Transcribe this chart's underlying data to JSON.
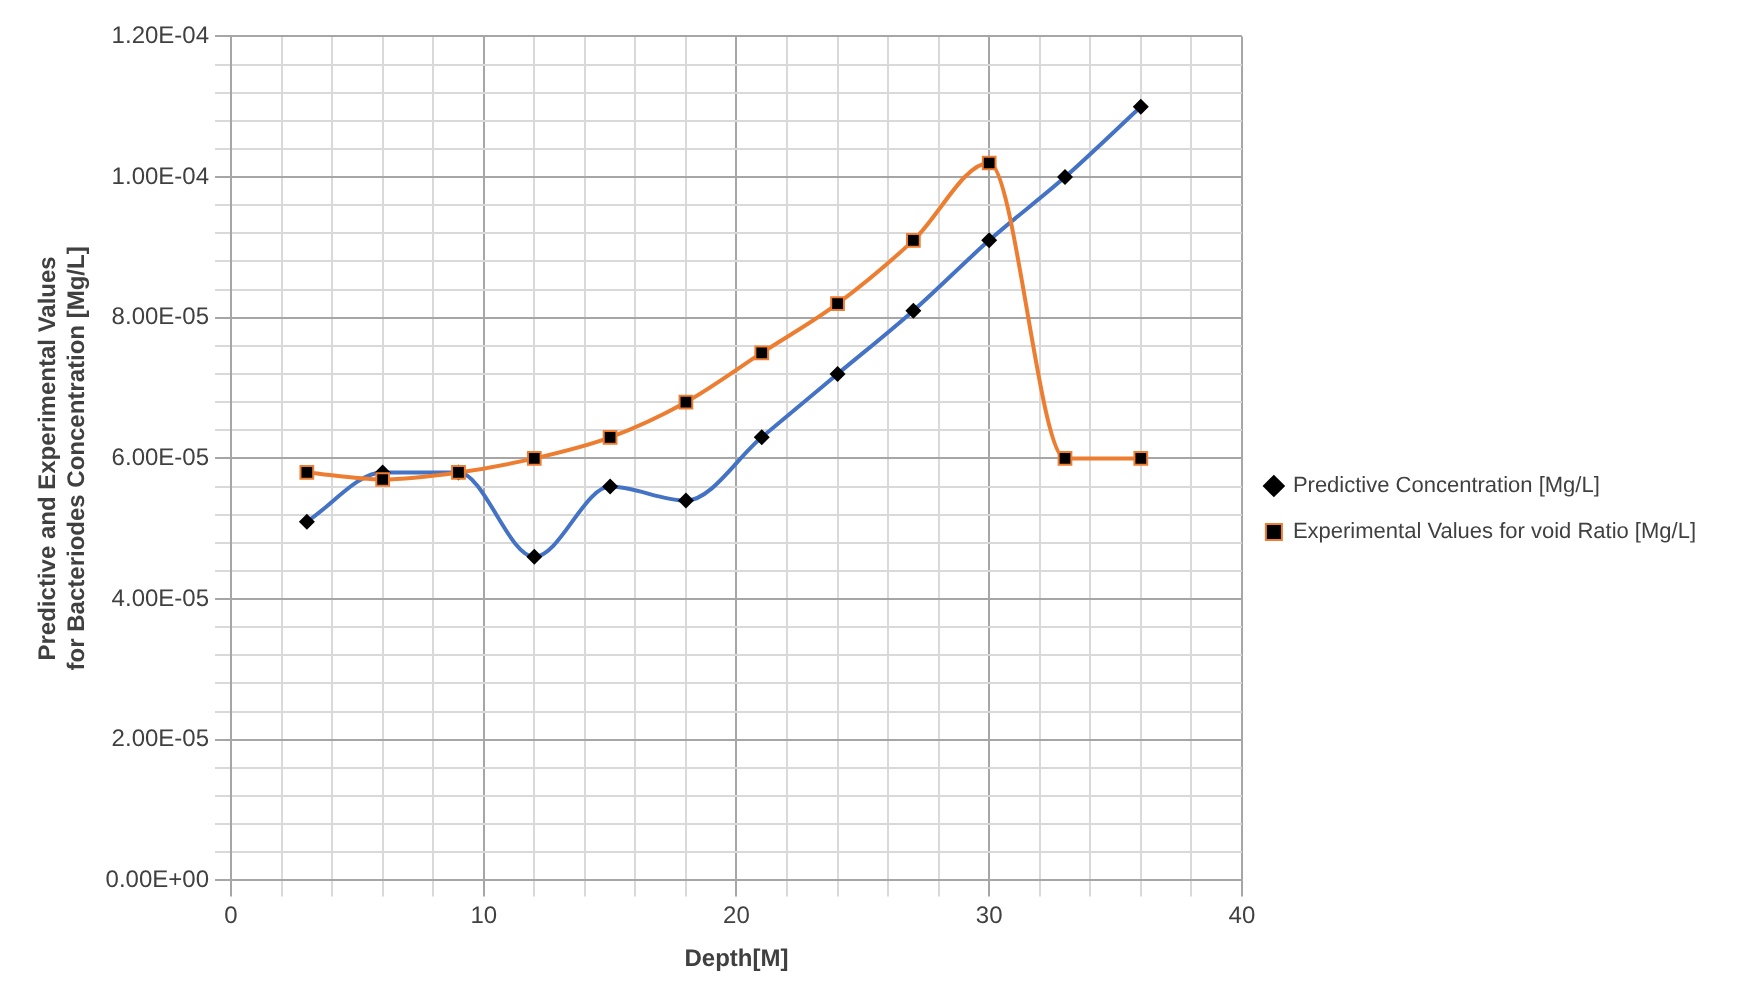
{
  "chart_data": {
    "type": "line",
    "xlabel": "Depth[M]",
    "ylabel": "Predictive and Experimental Values for Bacteriodes Concentration [Mg/L]",
    "x": [
      3,
      6,
      9,
      12,
      15,
      18,
      21,
      24,
      27,
      30,
      33,
      36
    ],
    "series": [
      {
        "name": "Predictive Concentration [Mg/L]",
        "color": "#4472c4",
        "marker": "diamond",
        "values": [
          5.1e-05,
          5.8e-05,
          5.8e-05,
          4.6e-05,
          5.6e-05,
          5.4e-05,
          6.3e-05,
          7.2e-05,
          8.1e-05,
          9.1e-05,
          0.0001,
          0.00011
        ]
      },
      {
        "name": "Experimental Values for void Ratio [Mg/L]",
        "color": "#ed7d31",
        "marker": "square",
        "values": [
          5.8e-05,
          5.7e-05,
          5.8e-05,
          6e-05,
          6.3e-05,
          6.8e-05,
          7.5e-05,
          8.2e-05,
          9.1e-05,
          0.000102,
          6e-05,
          6e-05
        ]
      }
    ],
    "xlim": [
      0,
      40
    ],
    "xticks": [
      0,
      {
        "value": 2,
        "label": null
      },
      {
        "value": 4,
        "label": null
      },
      {
        "value": 6,
        "label": null
      },
      {
        "value": 8,
        "label": null
      },
      10,
      {
        "value": 12,
        "label": null
      },
      {
        "value": 14,
        "label": null
      },
      {
        "value": 16,
        "label": null
      },
      {
        "value": 18,
        "label": null
      },
      20,
      {
        "value": 22,
        "label": null
      },
      {
        "value": 24,
        "label": null
      },
      {
        "value": 26,
        "label": null
      },
      {
        "value": 28,
        "label": null
      },
      30,
      {
        "value": 32,
        "label": null
      },
      {
        "value": 34,
        "label": null
      },
      {
        "value": 36,
        "label": null
      },
      {
        "value": 38,
        "label": null
      },
      40
    ],
    "ylim": [
      0,
      0.00012
    ],
    "yticks": [
      {
        "value": 0,
        "label": "0.00E+00"
      },
      {
        "value": 4e-06,
        "label": null
      },
      {
        "value": 8e-06,
        "label": null
      },
      {
        "value": 1.2e-05,
        "label": null
      },
      {
        "value": 1.6e-05,
        "label": null
      },
      {
        "value": 2e-05,
        "label": "2.00E-05"
      },
      {
        "value": 2.4e-05,
        "label": null
      },
      {
        "value": 2.8e-05,
        "label": null
      },
      {
        "value": 3.2e-05,
        "label": null
      },
      {
        "value": 3.6e-05,
        "label": null
      },
      {
        "value": 4e-05,
        "label": "4.00E-05"
      },
      {
        "value": 4.4e-05,
        "label": null
      },
      {
        "value": 4.8e-05,
        "label": null
      },
      {
        "value": 5.2e-05,
        "label": null
      },
      {
        "value": 5.6e-05,
        "label": null
      },
      {
        "value": 6e-05,
        "label": "6.00E-05"
      },
      {
        "value": 6.4e-05,
        "label": null
      },
      {
        "value": 6.8e-05,
        "label": null
      },
      {
        "value": 7.2e-05,
        "label": null
      },
      {
        "value": 7.6e-05,
        "label": null
      },
      {
        "value": 8e-05,
        "label": "8.00E-05"
      },
      {
        "value": 8.4e-05,
        "label": null
      },
      {
        "value": 8.8e-05,
        "label": null
      },
      {
        "value": 9.2e-05,
        "label": null
      },
      {
        "value": 9.6e-05,
        "label": null
      },
      {
        "value": 0.0001,
        "label": "1.00E-04"
      },
      {
        "value": 0.000104,
        "label": null
      },
      {
        "value": 0.000108,
        "label": null
      },
      {
        "value": 0.000112,
        "label": null
      },
      {
        "value": 0.000116,
        "label": null
      },
      {
        "value": 0.00012,
        "label": "1.20E-04"
      }
    ],
    "grid": true,
    "legend": "right",
    "line_style": "solid"
  }
}
